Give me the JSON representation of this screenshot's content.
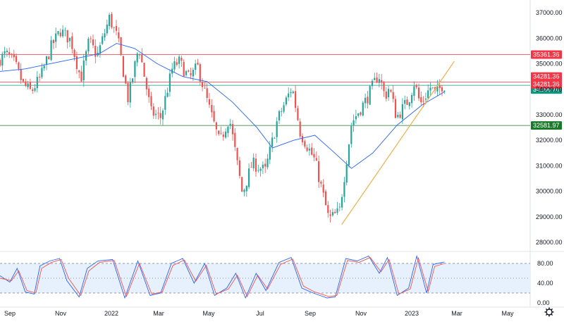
{
  "chart_data": [
    {
      "type": "candlestick",
      "title": "",
      "ylim": [
        27700,
        37500
      ],
      "y_ticks": [
        {
          "value": 37000,
          "label": "37000.00"
        },
        {
          "value": 36000,
          "label": "36000.00"
        },
        {
          "value": 35000,
          "label": "35000.00"
        },
        {
          "value": 34000,
          "label": "34000.00"
        },
        {
          "value": 33000,
          "label": "33000.00"
        },
        {
          "value": 32000,
          "label": "32000.00"
        },
        {
          "value": 31000,
          "label": "31000.00"
        },
        {
          "value": 30000,
          "label": "30000.00"
        },
        {
          "value": 29000,
          "label": "29000.00"
        },
        {
          "value": 28000,
          "label": "28000.00"
        }
      ],
      "x_labels": [
        "Sep",
        "Nov",
        "2022",
        "Mar",
        "May",
        "Jul",
        "Sep",
        "Nov",
        "2023",
        "Mar",
        "May"
      ],
      "up_color": "#26a69a",
      "down_color": "#ef5350",
      "moving_average_color": "#2962ff",
      "horizontal_levels": [
        {
          "value": 35361.36,
          "label": "35361.36",
          "color": "#f23645"
        },
        {
          "value": 34281.36,
          "label": "34281.36",
          "color": "#f23645"
        },
        {
          "value": 34156.7,
          "label": "34156.70",
          "color": "#089981"
        },
        {
          "value": 32581.97,
          "label": "32581.97",
          "color": "#1b7a2a"
        }
      ],
      "trendline": {
        "color": "#f0b04a",
        "from": {
          "date": "2022-10-13",
          "value": 28700
        },
        "to": {
          "date": "2023-02-28",
          "value": 35100
        }
      },
      "series_path": [
        {
          "date": "2021-08-20",
          "value": 35100
        },
        {
          "date": "2021-08-30",
          "value": 35400
        },
        {
          "date": "2021-09-10",
          "value": 35000
        },
        {
          "date": "2021-09-20",
          "value": 34200
        },
        {
          "date": "2021-09-30",
          "value": 33900
        },
        {
          "date": "2021-10-12",
          "value": 34500
        },
        {
          "date": "2021-10-25",
          "value": 35700
        },
        {
          "date": "2021-11-05",
          "value": 36300
        },
        {
          "date": "2021-11-18",
          "value": 35900
        },
        {
          "date": "2021-11-30",
          "value": 34400
        },
        {
          "date": "2021-12-10",
          "value": 35900
        },
        {
          "date": "2021-12-20",
          "value": 35300
        },
        {
          "date": "2022-01-04",
          "value": 36800
        },
        {
          "date": "2022-01-14",
          "value": 36000
        },
        {
          "date": "2022-01-27",
          "value": 33600
        },
        {
          "date": "2022-02-09",
          "value": 35700
        },
        {
          "date": "2022-02-24",
          "value": 33100
        },
        {
          "date": "2022-03-08",
          "value": 32900
        },
        {
          "date": "2022-03-22",
          "value": 34800
        },
        {
          "date": "2022-03-30",
          "value": 35100
        },
        {
          "date": "2022-04-12",
          "value": 34400
        },
        {
          "date": "2022-04-22",
          "value": 34900
        },
        {
          "date": "2022-05-06",
          "value": 33300
        },
        {
          "date": "2022-05-19",
          "value": 31900
        },
        {
          "date": "2022-05-31",
          "value": 32900
        },
        {
          "date": "2022-06-16",
          "value": 29900
        },
        {
          "date": "2022-06-28",
          "value": 31100
        },
        {
          "date": "2022-07-14",
          "value": 30800
        },
        {
          "date": "2022-07-29",
          "value": 32800
        },
        {
          "date": "2022-08-16",
          "value": 34100
        },
        {
          "date": "2022-08-26",
          "value": 32300
        },
        {
          "date": "2022-09-13",
          "value": 31200
        },
        {
          "date": "2022-09-30",
          "value": 28900
        },
        {
          "date": "2022-10-13",
          "value": 29200
        },
        {
          "date": "2022-10-28",
          "value": 32700
        },
        {
          "date": "2022-11-15",
          "value": 33600
        },
        {
          "date": "2022-11-30",
          "value": 34600
        },
        {
          "date": "2022-12-08",
          "value": 33700
        },
        {
          "date": "2022-12-13",
          "value": 34100
        },
        {
          "date": "2022-12-22",
          "value": 32900
        },
        {
          "date": "2023-01-06",
          "value": 33600
        },
        {
          "date": "2023-01-13",
          "value": 34300
        },
        {
          "date": "2023-01-20",
          "value": 33400
        },
        {
          "date": "2023-02-02",
          "value": 34100
        },
        {
          "date": "2023-02-08",
          "value": 33800
        },
        {
          "date": "2023-02-16",
          "value": 34156.7
        }
      ],
      "moving_average": [
        {
          "date": "2021-08-20",
          "value": 34700
        },
        {
          "date": "2021-09-20",
          "value": 34800
        },
        {
          "date": "2021-10-20",
          "value": 35000
        },
        {
          "date": "2021-11-20",
          "value": 35200
        },
        {
          "date": "2021-12-20",
          "value": 35400
        },
        {
          "date": "2022-01-10",
          "value": 35800
        },
        {
          "date": "2022-02-01",
          "value": 35600
        },
        {
          "date": "2022-03-01",
          "value": 35000
        },
        {
          "date": "2022-04-01",
          "value": 34500
        },
        {
          "date": "2022-05-01",
          "value": 34300
        },
        {
          "date": "2022-06-01",
          "value": 33500
        },
        {
          "date": "2022-07-01",
          "value": 32500
        },
        {
          "date": "2022-07-20",
          "value": 31700
        },
        {
          "date": "2022-08-15",
          "value": 32000
        },
        {
          "date": "2022-09-10",
          "value": 32200
        },
        {
          "date": "2022-10-01",
          "value": 31600
        },
        {
          "date": "2022-10-25",
          "value": 30900
        },
        {
          "date": "2022-11-20",
          "value": 31500
        },
        {
          "date": "2022-12-20",
          "value": 32600
        },
        {
          "date": "2023-01-20",
          "value": 33400
        },
        {
          "date": "2023-02-16",
          "value": 33900
        }
      ]
    },
    {
      "type": "line",
      "title": "",
      "ylim": [
        0,
        100
      ],
      "y_ticks": [
        {
          "value": 80,
          "label": "80.00"
        },
        {
          "value": 40,
          "label": "40.00"
        },
        {
          "value": 0,
          "label": "0.00"
        }
      ],
      "band": [
        20,
        80
      ],
      "series": [
        {
          "color": "#2962ff",
          "values": [
            {
              "date": "2021-08-20",
              "value": 55
            },
            {
              "date": "2021-09-01",
              "value": 42
            },
            {
              "date": "2021-09-10",
              "value": 70
            },
            {
              "date": "2021-09-20",
              "value": 22
            },
            {
              "date": "2021-10-01",
              "value": 18
            },
            {
              "date": "2021-10-08",
              "value": 75
            },
            {
              "date": "2021-10-20",
              "value": 85
            },
            {
              "date": "2021-11-01",
              "value": 90
            },
            {
              "date": "2021-11-10",
              "value": 45
            },
            {
              "date": "2021-11-25",
              "value": 12
            },
            {
              "date": "2021-12-05",
              "value": 70
            },
            {
              "date": "2021-12-18",
              "value": 85
            },
            {
              "date": "2022-01-05",
              "value": 88
            },
            {
              "date": "2022-01-20",
              "value": 10
            },
            {
              "date": "2022-02-05",
              "value": 85
            },
            {
              "date": "2022-02-20",
              "value": 15
            },
            {
              "date": "2022-03-05",
              "value": 20
            },
            {
              "date": "2022-03-18",
              "value": 80
            },
            {
              "date": "2022-04-01",
              "value": 90
            },
            {
              "date": "2022-04-15",
              "value": 40
            },
            {
              "date": "2022-04-28",
              "value": 80
            },
            {
              "date": "2022-05-10",
              "value": 15
            },
            {
              "date": "2022-05-25",
              "value": 30
            },
            {
              "date": "2022-06-05",
              "value": 60
            },
            {
              "date": "2022-06-17",
              "value": 10
            },
            {
              "date": "2022-06-30",
              "value": 60
            },
            {
              "date": "2022-07-12",
              "value": 25
            },
            {
              "date": "2022-07-28",
              "value": 82
            },
            {
              "date": "2022-08-12",
              "value": 92
            },
            {
              "date": "2022-08-25",
              "value": 30
            },
            {
              "date": "2022-09-08",
              "value": 20
            },
            {
              "date": "2022-09-25",
              "value": 10
            },
            {
              "date": "2022-10-05",
              "value": 12
            },
            {
              "date": "2022-10-18",
              "value": 90
            },
            {
              "date": "2022-11-01",
              "value": 85
            },
            {
              "date": "2022-11-15",
              "value": 95
            },
            {
              "date": "2022-11-28",
              "value": 60
            },
            {
              "date": "2022-12-08",
              "value": 92
            },
            {
              "date": "2022-12-20",
              "value": 15
            },
            {
              "date": "2023-01-03",
              "value": 30
            },
            {
              "date": "2023-01-13",
              "value": 95
            },
            {
              "date": "2023-01-25",
              "value": 20
            },
            {
              "date": "2023-02-02",
              "value": 78
            },
            {
              "date": "2023-02-16",
              "value": 83
            }
          ]
        },
        {
          "color": "#ef5350",
          "values": [
            {
              "date": "2021-08-20",
              "value": 50
            },
            {
              "date": "2021-09-03",
              "value": 45
            },
            {
              "date": "2021-09-12",
              "value": 65
            },
            {
              "date": "2021-09-22",
              "value": 25
            },
            {
              "date": "2021-10-03",
              "value": 20
            },
            {
              "date": "2021-10-10",
              "value": 70
            },
            {
              "date": "2021-10-22",
              "value": 82
            },
            {
              "date": "2021-11-03",
              "value": 88
            },
            {
              "date": "2021-11-12",
              "value": 50
            },
            {
              "date": "2021-11-27",
              "value": 15
            },
            {
              "date": "2021-12-07",
              "value": 65
            },
            {
              "date": "2021-12-20",
              "value": 82
            },
            {
              "date": "2022-01-07",
              "value": 86
            },
            {
              "date": "2022-01-22",
              "value": 13
            },
            {
              "date": "2022-02-07",
              "value": 80
            },
            {
              "date": "2022-02-22",
              "value": 18
            },
            {
              "date": "2022-03-07",
              "value": 22
            },
            {
              "date": "2022-03-20",
              "value": 76
            },
            {
              "date": "2022-04-03",
              "value": 87
            },
            {
              "date": "2022-04-17",
              "value": 44
            },
            {
              "date": "2022-04-30",
              "value": 76
            },
            {
              "date": "2022-05-12",
              "value": 18
            },
            {
              "date": "2022-05-27",
              "value": 28
            },
            {
              "date": "2022-06-07",
              "value": 56
            },
            {
              "date": "2022-06-19",
              "value": 13
            },
            {
              "date": "2022-07-02",
              "value": 56
            },
            {
              "date": "2022-07-14",
              "value": 28
            },
            {
              "date": "2022-07-30",
              "value": 78
            },
            {
              "date": "2022-08-14",
              "value": 89
            },
            {
              "date": "2022-08-27",
              "value": 34
            },
            {
              "date": "2022-09-10",
              "value": 22
            },
            {
              "date": "2022-09-27",
              "value": 13
            },
            {
              "date": "2022-10-07",
              "value": 15
            },
            {
              "date": "2022-10-20",
              "value": 86
            },
            {
              "date": "2022-11-03",
              "value": 82
            },
            {
              "date": "2022-11-17",
              "value": 92
            },
            {
              "date": "2022-11-30",
              "value": 63
            },
            {
              "date": "2022-12-10",
              "value": 88
            },
            {
              "date": "2022-12-22",
              "value": 18
            },
            {
              "date": "2023-01-05",
              "value": 28
            },
            {
              "date": "2023-01-15",
              "value": 91
            },
            {
              "date": "2023-01-27",
              "value": 23
            },
            {
              "date": "2023-02-04",
              "value": 74
            },
            {
              "date": "2023-02-16",
              "value": 80
            }
          ]
        }
      ]
    }
  ],
  "ui": {
    "settings_icon": "gear-icon"
  }
}
